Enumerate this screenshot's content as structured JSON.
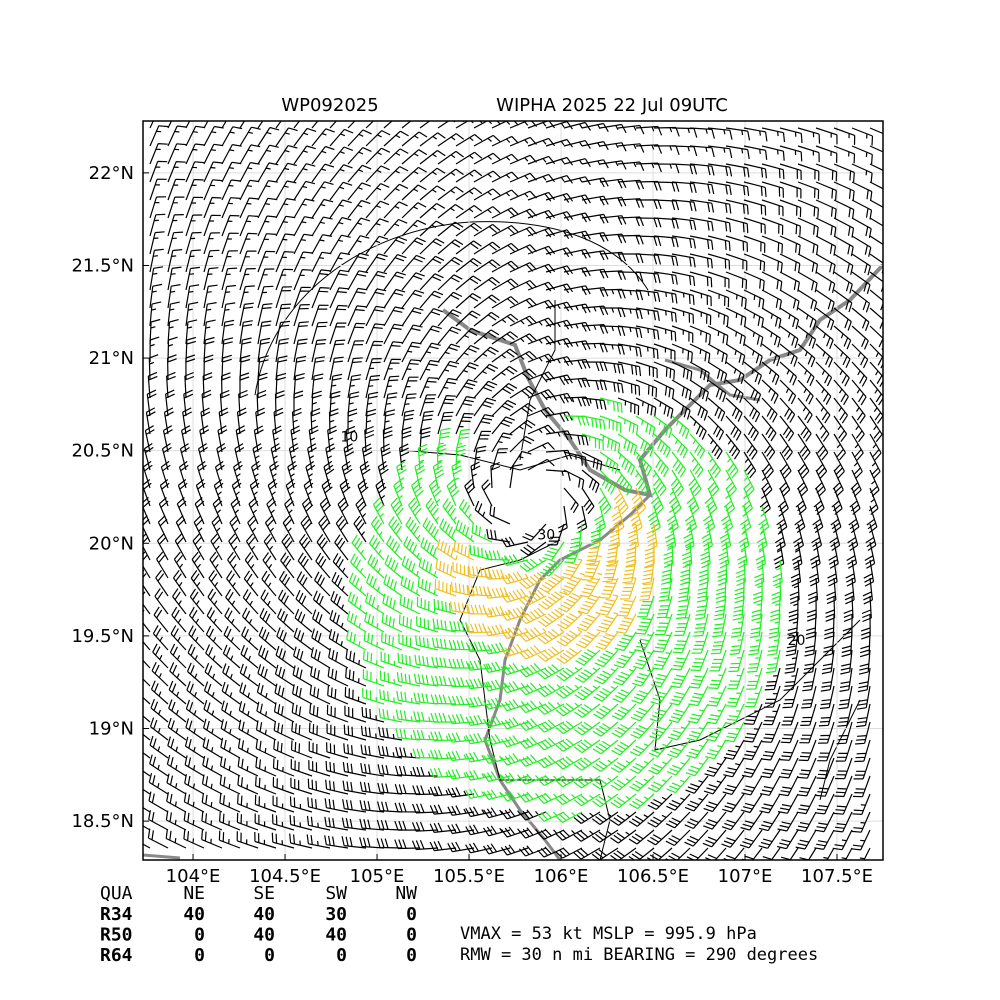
{
  "chart_data": {
    "type": "wind-map",
    "title_left": "WP092025",
    "title_right": "WIPHA 2025 22 Jul 09UTC",
    "xlim": [
      103.728,
      107.75
    ],
    "ylim": [
      18.29,
      22.28
    ],
    "xticks": [
      {
        "value": 104,
        "label": "104°E"
      },
      {
        "value": 104.5,
        "label": "104.5°E"
      },
      {
        "value": 105,
        "label": "105°E"
      },
      {
        "value": 105.5,
        "label": "105.5°E"
      },
      {
        "value": 106,
        "label": "106°E"
      },
      {
        "value": 106.5,
        "label": "106.5°E"
      },
      {
        "value": 107,
        "label": "107°E"
      },
      {
        "value": 107.5,
        "label": "107.5°E"
      }
    ],
    "yticks": [
      {
        "value": 18.5,
        "label": "18.5°N"
      },
      {
        "value": 19,
        "label": "19°N"
      },
      {
        "value": 19.5,
        "label": "19.5°N"
      },
      {
        "value": 20,
        "label": "20°N"
      },
      {
        "value": 20.5,
        "label": "20.5°N"
      },
      {
        "value": 21,
        "label": "21°N"
      },
      {
        "value": 21.5,
        "label": "21.5°N"
      },
      {
        "value": 22,
        "label": "22°N"
      }
    ],
    "contour_labels": [
      {
        "text": "10",
        "lon": 104.85,
        "lat": 20.55
      },
      {
        "text": "30",
        "lon": 105.92,
        "lat": 20.02
      },
      {
        "text": "20",
        "lon": 107.28,
        "lat": 19.45
      }
    ],
    "table": {
      "header": [
        "QUA",
        "NE",
        "SE",
        "SW",
        "NW"
      ],
      "rows": [
        [
          "R34",
          40,
          40,
          30,
          0
        ],
        [
          "R50",
          0,
          40,
          40,
          0
        ],
        [
          "R64",
          0,
          0,
          0,
          0
        ]
      ]
    },
    "info": [
      "VMAX =  53 kt MSLP = 995.9 hPa",
      "RMW =  30 n mi BEARING = 290 degrees"
    ]
  }
}
